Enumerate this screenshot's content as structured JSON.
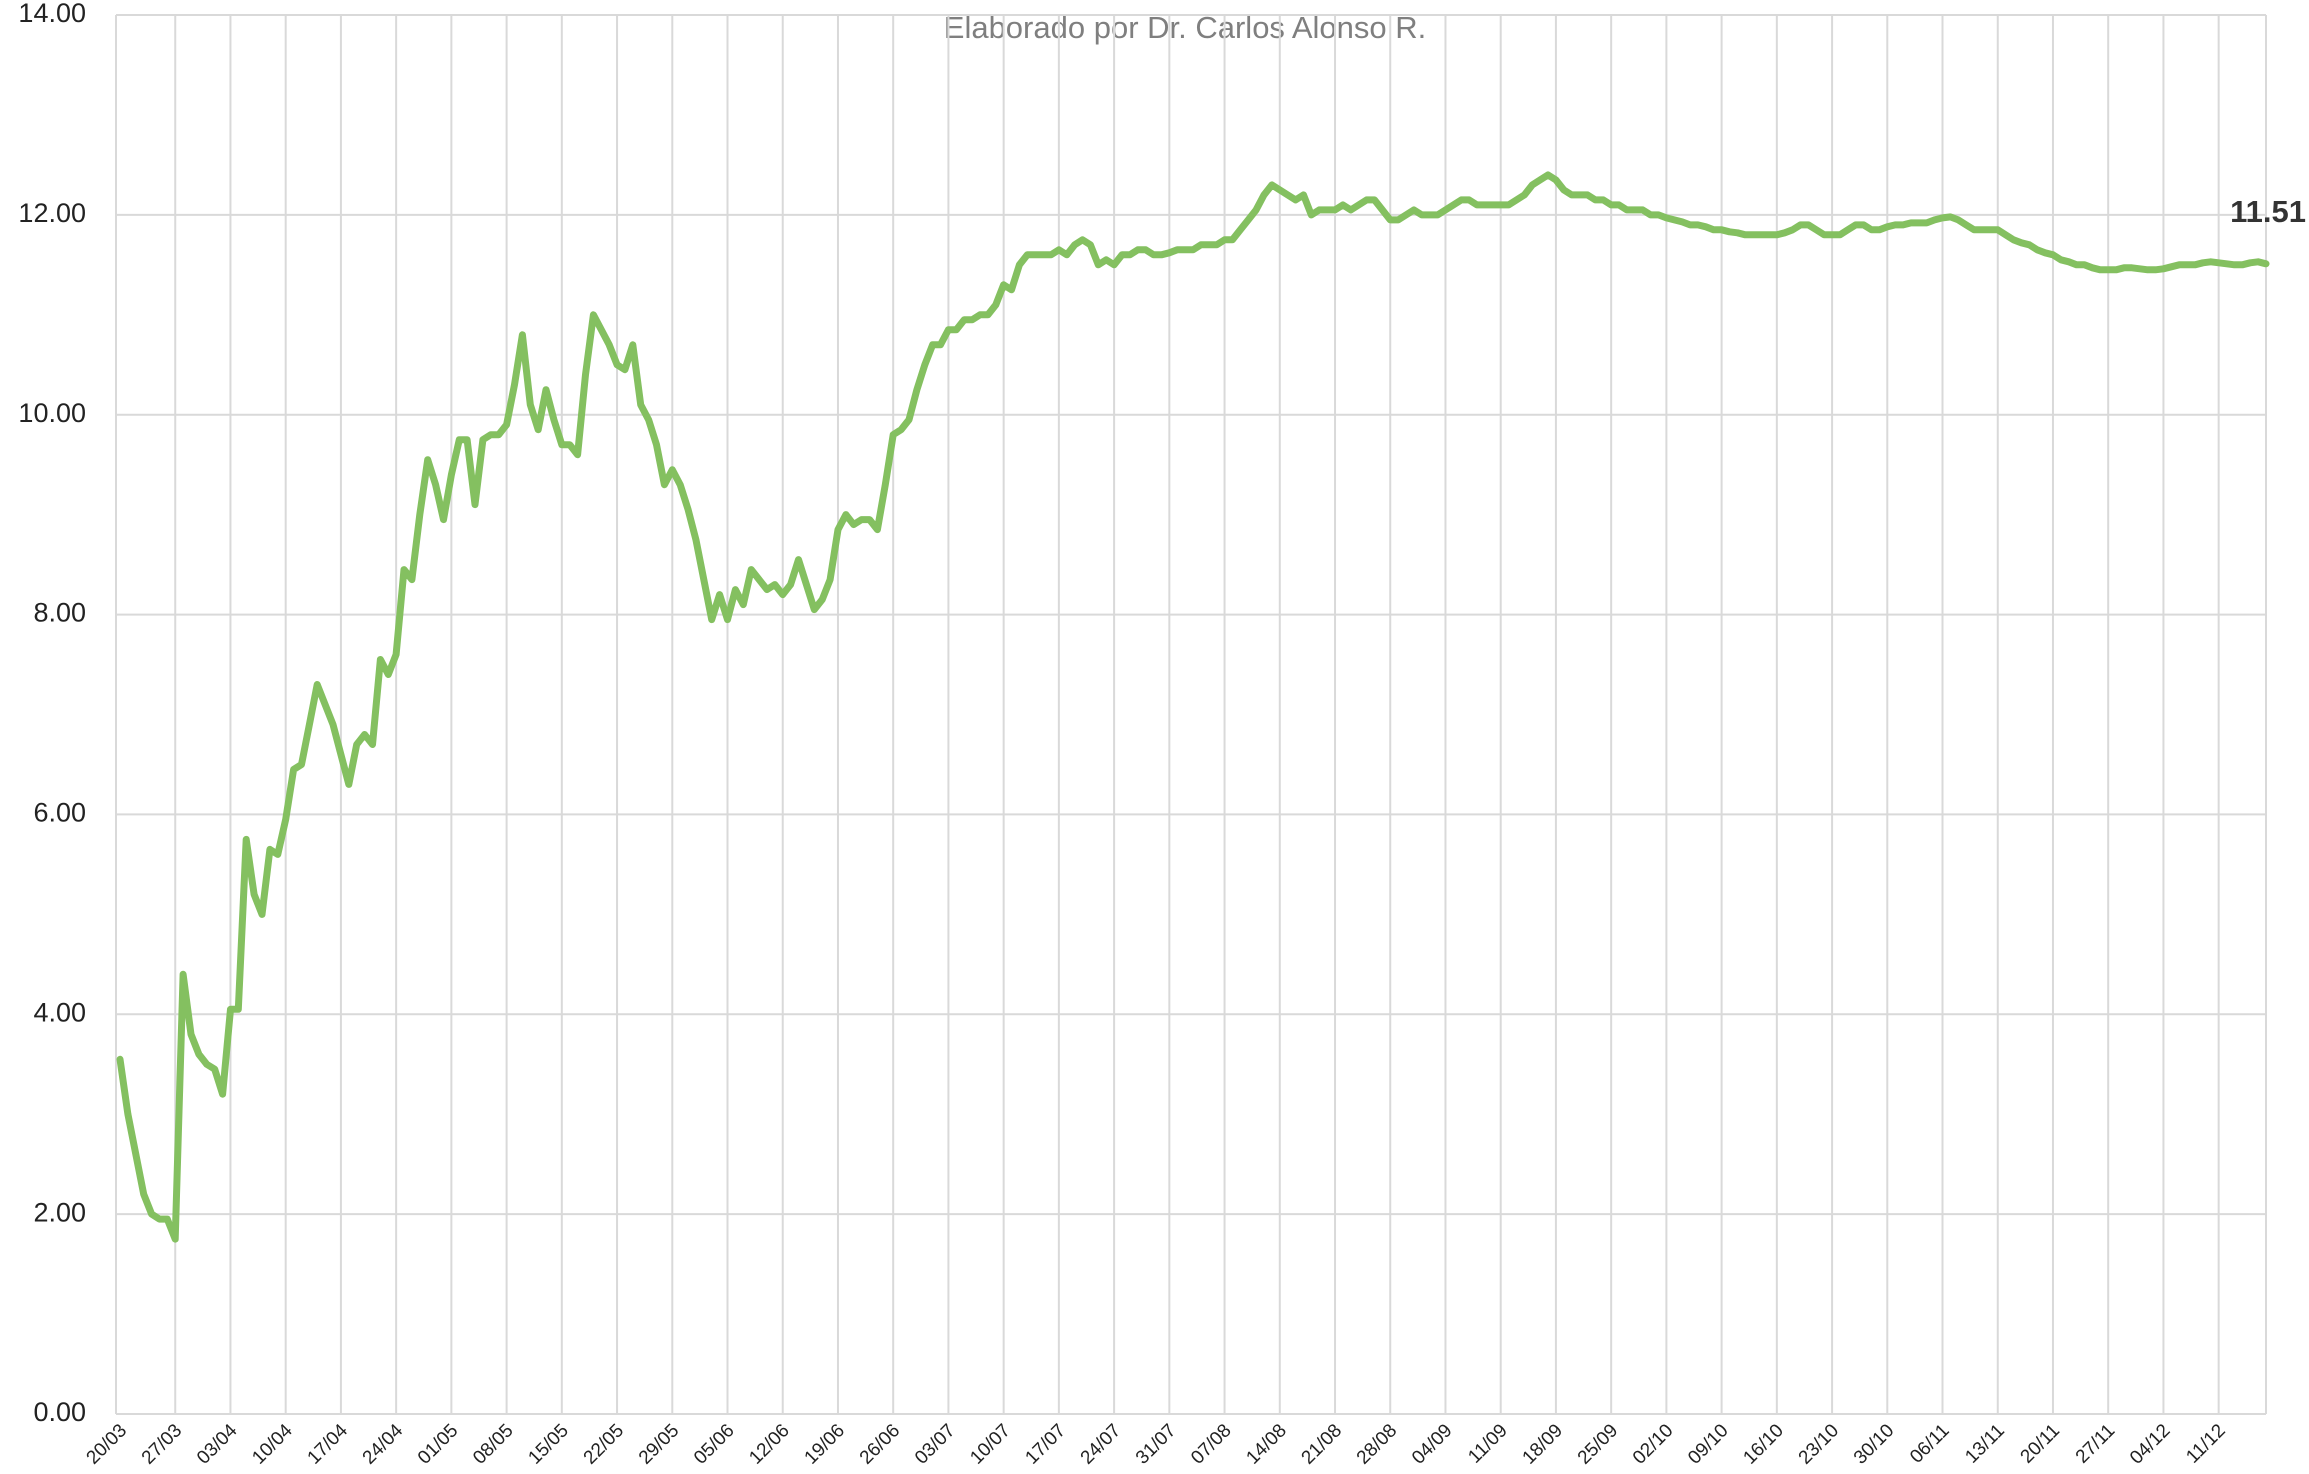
{
  "chart_data": {
    "type": "line",
    "subtitle": "Elaborado por Dr. Carlos Alonso R.",
    "annotation": "11.51",
    "categories": [
      "20/03",
      null,
      null,
      null,
      null,
      null,
      null,
      "27/03",
      null,
      null,
      null,
      null,
      null,
      null,
      "03/04",
      null,
      null,
      null,
      null,
      null,
      null,
      "10/04",
      null,
      null,
      null,
      null,
      null,
      null,
      "17/04",
      null,
      null,
      null,
      null,
      null,
      null,
      "24/04",
      null,
      null,
      null,
      null,
      null,
      null,
      "01/05",
      null,
      null,
      null,
      null,
      null,
      null,
      "08/05",
      null,
      null,
      null,
      null,
      null,
      null,
      "15/05",
      null,
      null,
      null,
      null,
      null,
      null,
      "22/05",
      null,
      null,
      null,
      null,
      null,
      null,
      "29/05",
      null,
      null,
      null,
      null,
      null,
      null,
      "05/06",
      null,
      null,
      null,
      null,
      null,
      null,
      "12/06",
      null,
      null,
      null,
      null,
      null,
      null,
      "19/06",
      null,
      null,
      null,
      null,
      null,
      null,
      "26/06",
      null,
      null,
      null,
      null,
      null,
      null,
      "03/07",
      null,
      null,
      null,
      null,
      null,
      null,
      "10/07",
      null,
      null,
      null,
      null,
      null,
      null,
      "17/07",
      null,
      null,
      null,
      null,
      null,
      null,
      "24/07",
      null,
      null,
      null,
      null,
      null,
      null,
      "31/07",
      null,
      null,
      null,
      null,
      null,
      null,
      "07/08",
      null,
      null,
      null,
      null,
      null,
      null,
      "14/08",
      null,
      null,
      null,
      null,
      null,
      null,
      "21/08",
      null,
      null,
      null,
      null,
      null,
      null,
      "28/08",
      null,
      null,
      null,
      null,
      null,
      null,
      "04/09",
      null,
      null,
      null,
      null,
      null,
      null,
      "11/09",
      null,
      null,
      null,
      null,
      null,
      null,
      "18/09",
      null,
      null,
      null,
      null,
      null,
      null,
      "25/09",
      null,
      null,
      null,
      null,
      null,
      null,
      "02/10",
      null,
      null,
      null,
      null,
      null,
      null,
      "09/10",
      null,
      null,
      null,
      null,
      null,
      null,
      "16/10",
      null,
      null,
      null,
      null,
      null,
      null,
      "23/10",
      null,
      null,
      null,
      null,
      null,
      null,
      "30/10",
      null,
      null,
      null,
      null,
      null,
      null,
      "06/11",
      null,
      null,
      null,
      null,
      null,
      null,
      "13/11",
      null,
      null,
      null,
      null,
      null,
      null,
      "20/11",
      null,
      null,
      null,
      null,
      null,
      null,
      "27/11",
      null,
      null,
      null,
      null,
      null,
      null,
      "04/12",
      null,
      null,
      null,
      null,
      null,
      null,
      "11/12",
      null,
      null,
      null,
      null,
      null,
      null
    ],
    "series": [
      {
        "color": "#84c060",
        "values": [
          3.55,
          3.0,
          2.6,
          2.2,
          2.0,
          1.95,
          1.95,
          1.75,
          4.4,
          3.8,
          3.6,
          3.5,
          3.45,
          3.2,
          4.05,
          4.05,
          5.75,
          5.2,
          5.0,
          5.65,
          5.6,
          5.95,
          6.45,
          6.5,
          6.9,
          7.3,
          7.1,
          6.9,
          6.6,
          6.3,
          6.7,
          6.8,
          6.7,
          7.55,
          7.4,
          7.6,
          8.45,
          8.35,
          9.0,
          9.55,
          9.3,
          8.95,
          9.4,
          9.75,
          9.75,
          9.1,
          9.75,
          9.8,
          9.8,
          9.9,
          10.3,
          10.8,
          10.1,
          9.85,
          10.25,
          9.95,
          9.7,
          9.7,
          9.6,
          10.4,
          11.0,
          10.85,
          10.7,
          10.5,
          10.45,
          10.7,
          10.1,
          9.95,
          9.7,
          9.3,
          9.45,
          9.3,
          9.05,
          8.75,
          8.35,
          7.95,
          8.2,
          7.95,
          8.25,
          8.1,
          8.45,
          8.35,
          8.25,
          8.3,
          8.2,
          8.3,
          8.55,
          8.3,
          8.05,
          8.15,
          8.35,
          8.85,
          9.0,
          8.9,
          8.95,
          8.95,
          8.85,
          9.3,
          9.8,
          9.85,
          9.95,
          10.25,
          10.5,
          10.7,
          10.7,
          10.85,
          10.85,
          10.95,
          10.95,
          11.0,
          11.0,
          11.1,
          11.3,
          11.25,
          11.5,
          11.6,
          11.6,
          11.6,
          11.6,
          11.65,
          11.6,
          11.7,
          11.75,
          11.7,
          11.5,
          11.55,
          11.5,
          11.6,
          11.6,
          11.65,
          11.65,
          11.6,
          11.6,
          11.62,
          11.65,
          11.65,
          11.65,
          11.7,
          11.7,
          11.7,
          11.75,
          11.75,
          11.85,
          11.95,
          12.05,
          12.2,
          12.3,
          12.25,
          12.2,
          12.15,
          12.2,
          12.0,
          12.05,
          12.05,
          12.05,
          12.1,
          12.05,
          12.1,
          12.15,
          12.15,
          12.05,
          11.95,
          11.95,
          12.0,
          12.05,
          12.0,
          12.0,
          12.0,
          12.05,
          12.1,
          12.15,
          12.15,
          12.1,
          12.1,
          12.1,
          12.1,
          12.1,
          12.15,
          12.2,
          12.3,
          12.35,
          12.4,
          12.35,
          12.25,
          12.2,
          12.2,
          12.2,
          12.15,
          12.15,
          12.1,
          12.1,
          12.05,
          12.05,
          12.05,
          12.0,
          12.0,
          11.97,
          11.95,
          11.93,
          11.9,
          11.9,
          11.88,
          11.85,
          11.85,
          11.83,
          11.82,
          11.8,
          11.8,
          11.8,
          11.8,
          11.8,
          11.82,
          11.85,
          11.9,
          11.9,
          11.85,
          11.8,
          11.8,
          11.8,
          11.85,
          11.9,
          11.9,
          11.85,
          11.85,
          11.88,
          11.9,
          11.9,
          11.92,
          11.92,
          11.92,
          11.95,
          11.97,
          11.98,
          11.95,
          11.9,
          11.85,
          11.85,
          11.85,
          11.85,
          11.8,
          11.75,
          11.72,
          11.7,
          11.65,
          11.62,
          11.6,
          11.55,
          11.53,
          11.5,
          11.5,
          11.47,
          11.45,
          11.45,
          11.45,
          11.47,
          11.47,
          11.46,
          11.45,
          11.45,
          11.46,
          11.48,
          11.5,
          11.5,
          11.5,
          11.52,
          11.53,
          11.52,
          11.51,
          11.5,
          11.5,
          11.52,
          11.53,
          11.51
        ]
      }
    ],
    "ylim": [
      0,
      14
    ],
    "yticks": [
      {
        "value": 0,
        "label": "0.00"
      },
      {
        "value": 2,
        "label": "2.00"
      },
      {
        "value": 4,
        "label": "4.00"
      },
      {
        "value": 6,
        "label": "6.00"
      },
      {
        "value": 8,
        "label": "8.00"
      },
      {
        "value": 10,
        "label": "10.00"
      },
      {
        "value": 12,
        "label": "12.00"
      },
      {
        "value": 14,
        "label": "14.00"
      }
    ],
    "grid": true
  }
}
